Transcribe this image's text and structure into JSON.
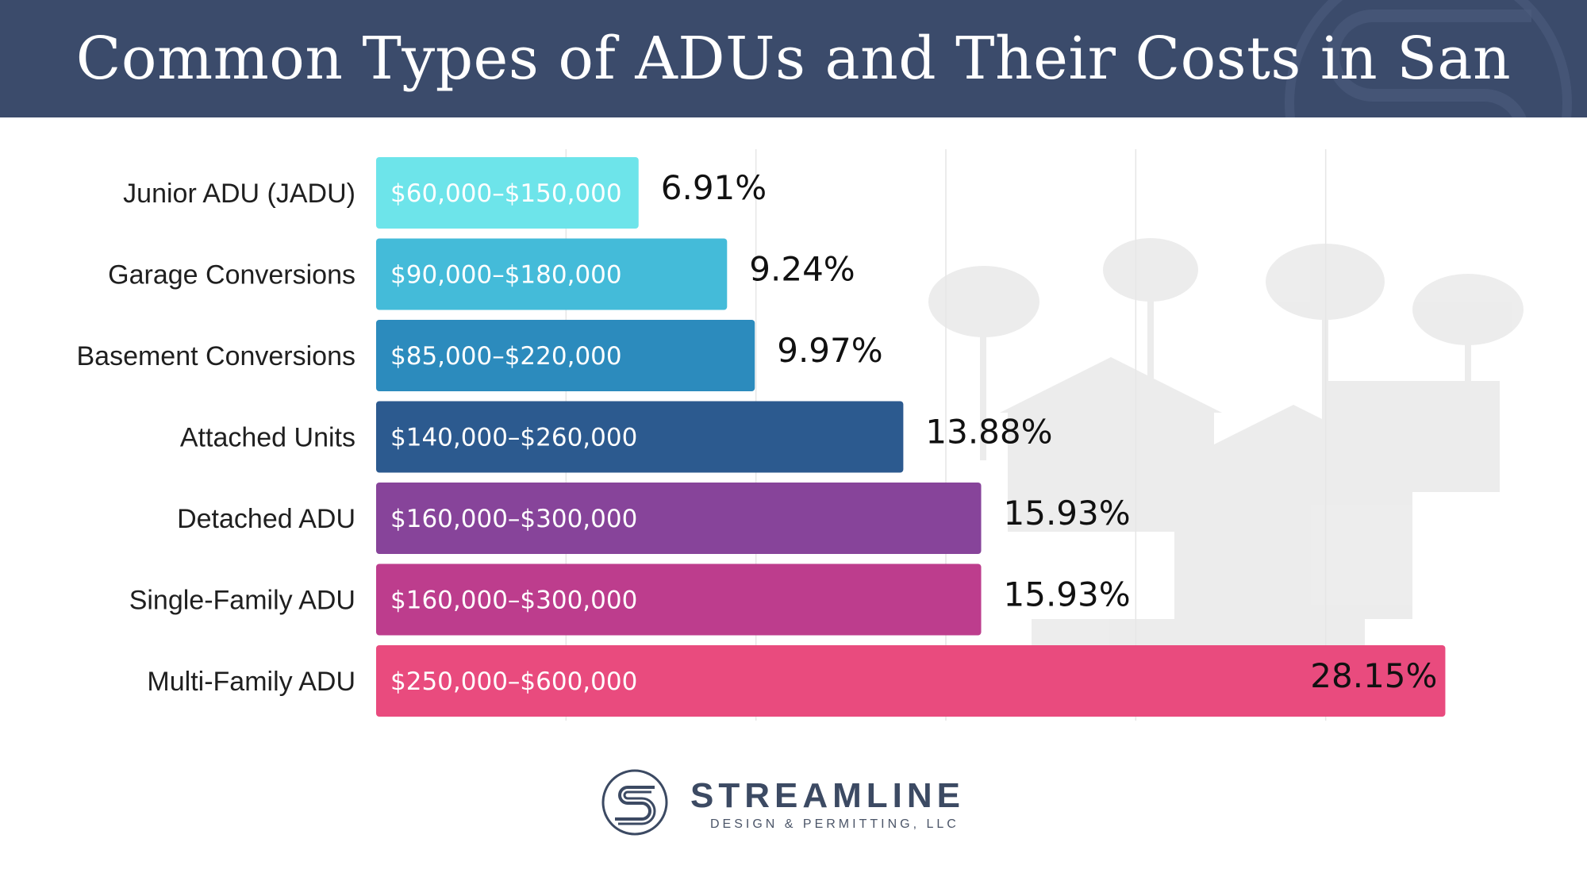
{
  "header": {
    "title": "Common Types of ADUs and Their Costs in San Diego",
    "background": "#3b4b6b"
  },
  "chart_data": {
    "type": "bar",
    "orientation": "horizontal",
    "title": "Common Types of ADUs and Their Costs in San Diego",
    "xlabel": "",
    "ylabel": "",
    "xlim": [
      0,
      30
    ],
    "grid": true,
    "categories": [
      "Junior ADU (JADU)",
      "Garage Conversions",
      "Basement Conversions",
      "Attached Units",
      "Detached ADU",
      "Single-Family ADU",
      "Multi-Family ADU"
    ],
    "values": [
      6.91,
      9.24,
      9.97,
      13.88,
      15.93,
      15.93,
      28.15
    ],
    "value_labels": [
      "6.91%",
      "9.24%",
      "9.97%",
      "13.88%",
      "15.93%",
      "15.93%",
      "28.15%"
    ],
    "cost_ranges": [
      "$60,000–$150,000",
      "$90,000–$180,000",
      "$85,000–$220,000",
      "$140,000–$260,000",
      "$160,000–$300,000",
      "$160,000–$300,000",
      "$250,000–$600,000"
    ],
    "colors": [
      "#6de4ea",
      "#44bbd9",
      "#2c8bbd",
      "#2c5a8f",
      "#87449a",
      "#bd3d8d",
      "#e94b7e"
    ]
  },
  "logo": {
    "name": "STREAMLINE",
    "tagline": "DESIGN & PERMITTING, LLC",
    "icon": "streamline-s-logo-icon"
  }
}
